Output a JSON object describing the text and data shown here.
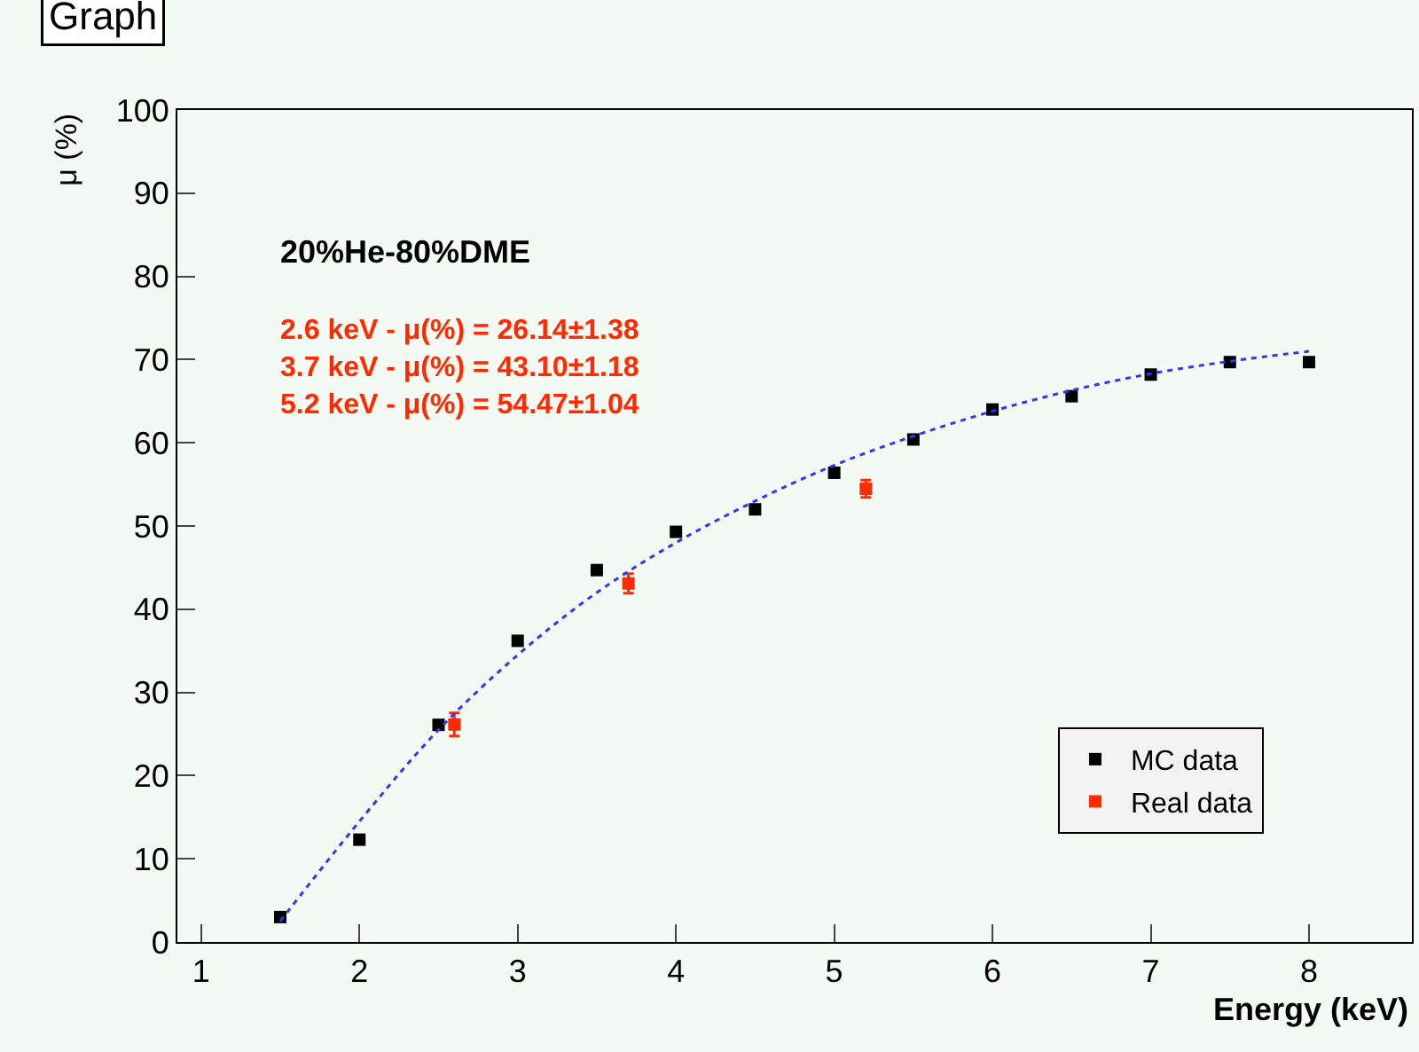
{
  "chart_data": {
    "type": "scatter",
    "title": "Graph",
    "xlabel": "Energy (keV)",
    "ylabel": "μ (%)",
    "annotations": [
      "20%He-80%DME",
      "2.6 keV - μ(%) = 26.14±1.38",
      "3.7 keV - μ(%) = 43.10±1.18",
      "5.2 keV - μ(%) = 54.47±1.04"
    ],
    "series": [
      {
        "name": "MC data",
        "color": "#000000",
        "marker": "square",
        "x": [
          1.5,
          2,
          2.5,
          3,
          3.5,
          4,
          4.5,
          5,
          5.5,
          6,
          6.5,
          7,
          7.5,
          8
        ],
        "values": [
          3.0,
          12.3,
          26.1,
          36.2,
          44.7,
          49.3,
          52.0,
          56.4,
          60.4,
          64.0,
          65.6,
          68.2,
          69.7,
          69.7
        ]
      },
      {
        "name": "Real data",
        "color": "#ff2a00",
        "marker": "square",
        "x": [
          2.6,
          3.7,
          5.2
        ],
        "values": [
          26.14,
          43.1,
          54.47
        ],
        "errors": [
          1.38,
          1.18,
          1.04
        ]
      },
      {
        "type": "line",
        "color": "#3333ff",
        "line_style": "dotted",
        "x": [
          1.5,
          2,
          2.5,
          3,
          3.5,
          4,
          4.5,
          5,
          5.5,
          6,
          6.5,
          7,
          7.5,
          8
        ],
        "values": [
          2.5,
          14.5,
          25.5,
          34.5,
          42.0,
          48.0,
          53.0,
          57.3,
          60.8,
          63.8,
          66.3,
          68.3,
          69.8,
          71.0
        ]
      }
    ],
    "xlim": [
      0.85,
      8.65
    ],
    "xticks": [
      1,
      2,
      3,
      4,
      5,
      6,
      7,
      8
    ],
    "ylim": [
      0,
      100
    ],
    "yticks": [
      0,
      10,
      20,
      30,
      40,
      50,
      60,
      70,
      80,
      90,
      100
    ],
    "grid": false,
    "legend": "bottom right"
  }
}
